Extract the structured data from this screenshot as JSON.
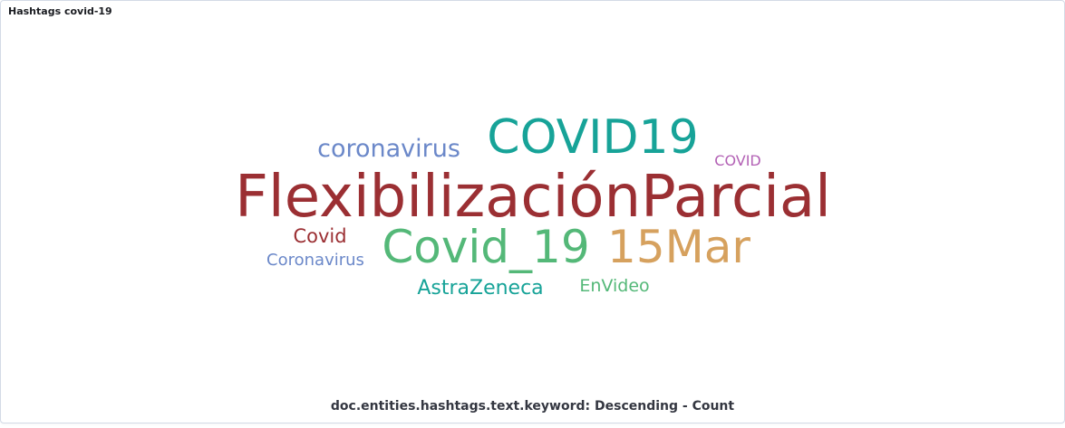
{
  "panel": {
    "title": "Hashtags covid-19"
  },
  "chart_data": {
    "type": "wordcloud",
    "caption": "doc.entities.hashtags.text.keyword: Descending - Count",
    "words": [
      {
        "text": "FlexibilizaciónParcial",
        "rank": 1,
        "color": "#9b2f33"
      },
      {
        "text": "COVID19",
        "rank": 2,
        "color": "#17a398"
      },
      {
        "text": "Covid_19",
        "rank": 3,
        "color": "#54b878"
      },
      {
        "text": "15Mar",
        "rank": 4,
        "color": "#d6a15e"
      },
      {
        "text": "coronavirus",
        "rank": 5,
        "color": "#6b88c9"
      },
      {
        "text": "Covid",
        "rank": 6,
        "color": "#9b2f33"
      },
      {
        "text": "AstraZeneca",
        "rank": 7,
        "color": "#17a398"
      },
      {
        "text": "Coronavirus",
        "rank": 8,
        "color": "#6b88c9"
      },
      {
        "text": "EnVideo",
        "rank": 9,
        "color": "#54b878"
      },
      {
        "text": "COVID",
        "rank": 10,
        "color": "#b361b5"
      }
    ]
  }
}
